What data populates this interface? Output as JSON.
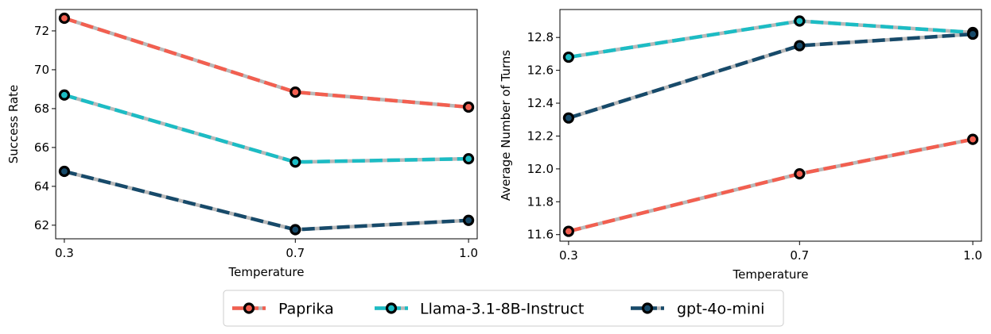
{
  "chart_data": [
    {
      "type": "line",
      "title": "",
      "xlabel": "Temperature",
      "ylabel": "Success Rate",
      "x": [
        0.3,
        0.7,
        1.0
      ],
      "xticks": [
        "0.3",
        "0.7",
        "1.0"
      ],
      "xlim": [
        0.285,
        1.015
      ],
      "ylim": [
        61.3,
        73.1
      ],
      "yticks": [
        62,
        64,
        66,
        68,
        70,
        72
      ],
      "series": [
        {
          "name": "Paprika",
          "values": [
            72.65,
            68.85,
            68.08
          ]
        },
        {
          "name": "Llama-3.1-8B-Instruct",
          "values": [
            68.7,
            65.25,
            65.42
          ]
        },
        {
          "name": "gpt-4o-mini",
          "values": [
            64.77,
            61.77,
            62.25
          ]
        }
      ],
      "grid": false
    },
    {
      "type": "line",
      "title": "",
      "xlabel": "Temperature",
      "ylabel": "Average Number of Turns",
      "x": [
        0.3,
        0.7,
        1.0
      ],
      "xticks": [
        "0.3",
        "0.7",
        "1.0"
      ],
      "xlim": [
        0.285,
        1.015
      ],
      "ylim": [
        11.56,
        12.97
      ],
      "yticks": [
        11.6,
        11.8,
        12.0,
        12.2,
        12.4,
        12.6,
        12.8
      ],
      "series": [
        {
          "name": "Paprika",
          "values": [
            11.62,
            11.97,
            12.18
          ]
        },
        {
          "name": "Llama-3.1-8B-Instruct",
          "values": [
            12.68,
            12.9,
            12.83
          ]
        },
        {
          "name": "gpt-4o-mini",
          "values": [
            12.31,
            12.75,
            12.82
          ]
        }
      ],
      "grid": false
    }
  ],
  "legend": {
    "placement": "bottom-center",
    "items": [
      {
        "label": "Paprika",
        "color": "#f25f50"
      },
      {
        "label": "Llama-3.1-8B-Instruct",
        "color": "#1cbcc4"
      },
      {
        "label": "gpt-4o-mini",
        "color": "#174a6a"
      }
    ]
  },
  "colors": {
    "marker_edge": "#000000",
    "dash_highlight": "#b8b8b8"
  }
}
